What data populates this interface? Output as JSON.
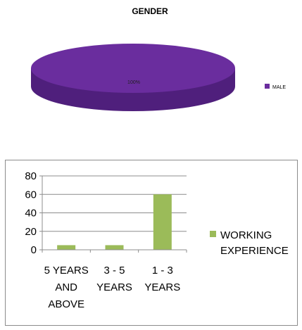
{
  "chart_data": [
    {
      "type": "pie",
      "title": "GENDER",
      "slices": [
        {
          "label": "MALE",
          "value": 100,
          "data_label": "100%",
          "color": "#6a2d9e"
        }
      ],
      "legend_position": "right"
    },
    {
      "type": "bar",
      "title": "",
      "xlabel": "",
      "ylabel": "",
      "categories": [
        [
          "5 YEARS",
          "AND",
          "ABOVE"
        ],
        [
          "3 - 5",
          "YEARS"
        ],
        [
          "1 - 3",
          "YEARS"
        ]
      ],
      "series": [
        {
          "name": "WORKING EXPERIENCE",
          "values": [
            5,
            5,
            60
          ],
          "color": "#9bbb59"
        }
      ],
      "legend_lines": [
        "WORKING",
        "EXPERIENCE"
      ],
      "yticks": [
        "0",
        "20",
        "40",
        "60",
        "80"
      ],
      "ylim": [
        0,
        80
      ],
      "grid": true,
      "legend_position": "right"
    }
  ]
}
